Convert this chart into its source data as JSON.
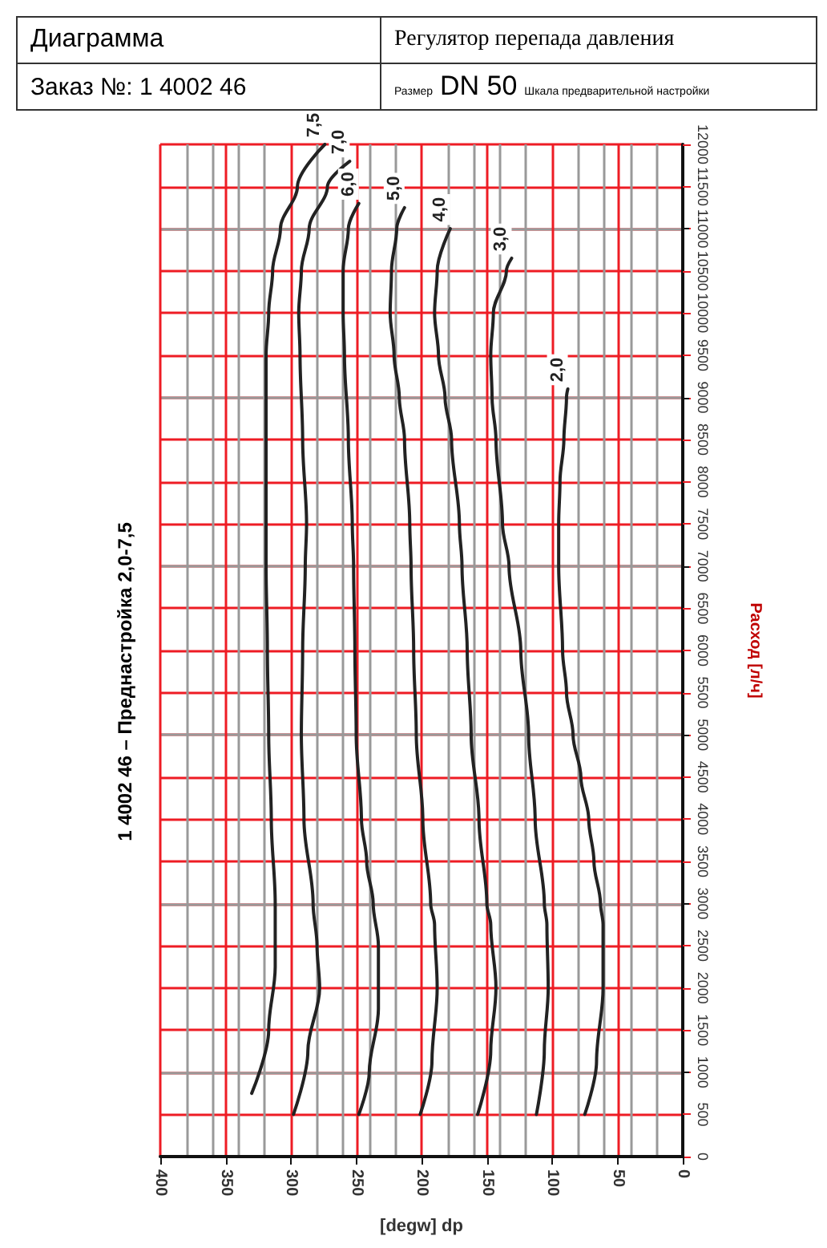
{
  "chart_data": {
    "type": "line",
    "title": "Диаграмма",
    "xlabel": "[degw] dp",
    "ylabel": "Расход [л/ч]",
    "annotations": [
      "Регулятор перепада давления",
      "Заказ №: 1 4002 46",
      "Размер",
      "DN 50",
      "Шкала предварительной настройки",
      "1 4002 46 – Преднастройка 2,0-7,5"
    ],
    "xlim": [
      400,
      0
    ],
    "xticks": [
      0,
      50,
      100,
      150,
      200,
      250,
      300,
      350,
      400
    ],
    "ylim": [
      0,
      12000
    ],
    "yticks": [
      0,
      500,
      1000,
      1500,
      2000,
      2500,
      3000,
      3500,
      4000,
      4500,
      5000,
      5500,
      6000,
      6500,
      7000,
      7500,
      8000,
      8500,
      9000,
      9500,
      10000,
      10500,
      11000,
      11500,
      12000
    ],
    "grid": true,
    "legend": false,
    "marker": "none",
    "line_style": "solid",
    "series": [
      {
        "name": "2,0",
        "color": "#222222",
        "x": [
          75,
          66,
          61,
          61,
          63,
          68,
          72,
          78,
          84,
          89,
          92,
          95,
          95,
          94,
          91,
          89,
          88
        ],
        "values": [
          500,
          1130,
          2000,
          2750,
          3000,
          3500,
          4000,
          4500,
          5000,
          5500,
          6000,
          7000,
          7500,
          8000,
          8500,
          9000,
          9100
        ]
      },
      {
        "name": "3,0",
        "color": "#222222",
        "x": [
          112,
          106,
          103,
          104,
          106,
          113,
          118,
          124,
          133,
          138,
          143,
          146,
          147,
          145,
          135,
          131
        ],
        "values": [
          500,
          1250,
          2000,
          2750,
          3000,
          4000,
          5000,
          6000,
          7000,
          7500,
          8500,
          9000,
          9500,
          10000,
          10500,
          10650
        ]
      },
      {
        "name": "4,0",
        "color": "#222222",
        "x": [
          157,
          147,
          143,
          147,
          150,
          156,
          162,
          165,
          169,
          171,
          177,
          182,
          187,
          190,
          188,
          178
        ],
        "values": [
          500,
          1250,
          2000,
          2750,
          3000,
          4000,
          5000,
          6000,
          7000,
          7500,
          8500,
          9000,
          9500,
          10000,
          10500,
          11000
        ]
      },
      {
        "name": "5,0",
        "color": "#222222",
        "x": [
          201,
          192,
          188,
          190,
          193,
          199,
          204,
          206,
          208,
          209,
          213,
          217,
          221,
          224,
          223,
          219,
          213
        ],
        "values": [
          500,
          1130,
          2000,
          2750,
          3000,
          4000,
          5000,
          6000,
          7000,
          7500,
          8500,
          9000,
          9500,
          10000,
          10500,
          11000,
          11250
        ]
      },
      {
        "name": "6,0",
        "color": "#222222",
        "x": [
          248,
          240,
          233,
          233,
          237,
          242,
          246,
          250,
          251,
          252,
          253,
          256,
          259,
          260,
          260,
          256,
          248
        ],
        "values": [
          500,
          1000,
          1750,
          2500,
          3000,
          3500,
          4000,
          5000,
          6000,
          7000,
          7500,
          8500,
          9500,
          10000,
          10500,
          11000,
          11300
        ]
      },
      {
        "name": "7,0",
        "color": "#222222",
        "x": [
          298,
          287,
          278,
          280,
          283,
          290,
          292,
          291,
          289,
          288,
          291,
          293,
          294,
          292,
          286,
          272,
          255
        ],
        "values": [
          500,
          1250,
          2000,
          2500,
          3000,
          4000,
          5000,
          6000,
          7000,
          7500,
          8500,
          9500,
          10000,
          10500,
          11000,
          11500,
          11800
        ]
      },
      {
        "name": "7,5",
        "color": "#222222",
        "x": [
          330,
          317,
          312,
          312,
          315,
          317,
          318,
          319,
          319,
          319,
          317,
          314,
          308,
          295,
          274
        ],
        "values": [
          750,
          1500,
          2250,
          3000,
          4000,
          5000,
          6000,
          7000,
          8500,
          9500,
          10000,
          10500,
          11000,
          11500,
          12000
        ]
      }
    ]
  }
}
